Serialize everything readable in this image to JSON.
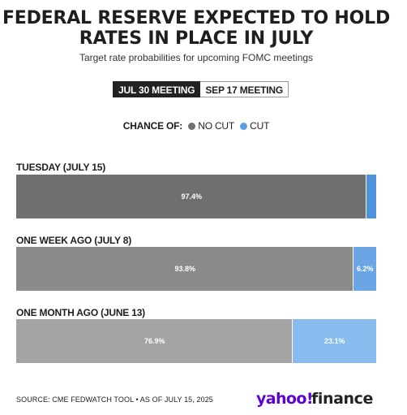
{
  "title": "FEDERAL RESERVE EXPECTED TO HOLD RATES IN PLACE IN JULY",
  "subtitle": "Target rate probabilities for upcoming FOMC meetings",
  "tabs": [
    {
      "label": "JUL 30 MEETING",
      "active": true
    },
    {
      "label": "SEP 17 MEETING",
      "active": false
    }
  ],
  "legend": {
    "prefix": "CHANCE OF:",
    "items": [
      {
        "label": "NO CUT"
      },
      {
        "label": "CUT"
      }
    ]
  },
  "colors": {
    "no_cut": [
      "#6f6f6f",
      "#8a8a8a",
      "#a3a3a3"
    ],
    "cut": [
      "#4e92dc",
      "#6aa6e6",
      "#88bbee"
    ],
    "legend_no_cut": "#6f6f6f",
    "legend_cut": "#5e9fe3"
  },
  "chart_data": {
    "type": "bar",
    "orientation": "horizontal",
    "stacked": true,
    "categories": [
      "TUESDAY (JULY 15)",
      "ONE WEEK AGO (JULY 8)",
      "ONE MONTH AGO (JUNE 13)"
    ],
    "series": [
      {
        "name": "NO CUT",
        "values": [
          97.4,
          93.8,
          76.9
        ],
        "labels": [
          "97.4%",
          "93.8%",
          "76.9%"
        ]
      },
      {
        "name": "CUT",
        "values": [
          2.6,
          6.2,
          23.1
        ],
        "labels": [
          "",
          "6.2%",
          "23.1%"
        ]
      }
    ],
    "xlim": [
      0,
      100
    ],
    "unit": "%"
  },
  "footer": {
    "source": "SOURCE: CME FEDWATCH TOOL • AS OF JULY 15, 2025",
    "logo": "yahoo!finance"
  }
}
